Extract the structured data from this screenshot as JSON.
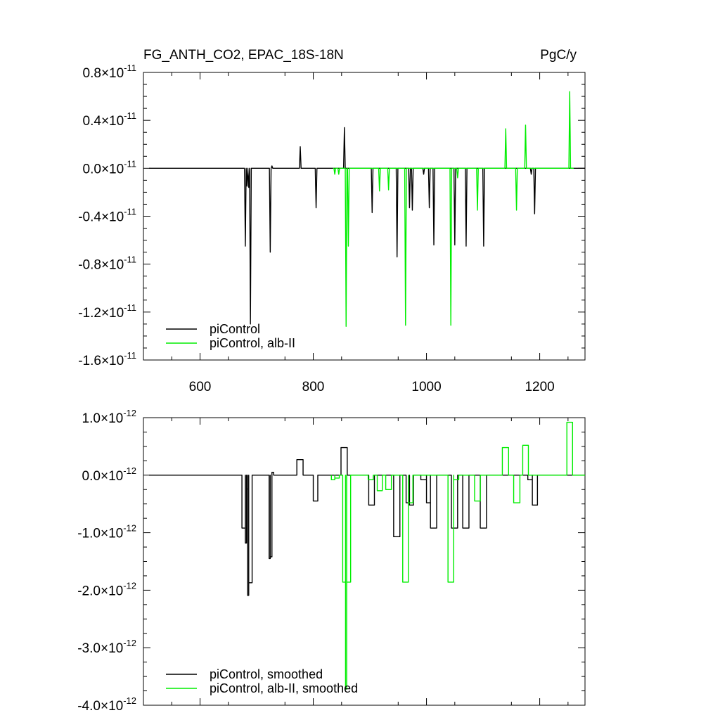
{
  "header": {
    "title": "FG_ANTH_CO2, EPAC_18S-18N",
    "units": "PgC/y"
  },
  "colors": {
    "picontrol": "#000000",
    "alb_ii": "#00ee00"
  },
  "chart_data": [
    {
      "type": "line",
      "panel": "top",
      "title": "FG_ANTH_CO2, EPAC_18S-18N",
      "units": "PgC/y",
      "xlim": [
        500,
        1280
      ],
      "ylim": [
        -1.6e-11,
        8e-12
      ],
      "x_ticks": [
        600,
        800,
        1000,
        1200
      ],
      "x_tick_labels": [
        "600",
        "800",
        "1000",
        "1200"
      ],
      "y_ticks": [
        {
          "mant": "0.8",
          "exp": "-11",
          "value": 8e-12
        },
        {
          "mant": "0.4",
          "exp": "-11",
          "value": 4e-12
        },
        {
          "mant": "0.0",
          "exp": "-11",
          "value": 0.0
        },
        {
          "mant": "-0.4",
          "exp": "-11",
          "value": -4e-12
        },
        {
          "mant": "-0.8",
          "exp": "-11",
          "value": -8e-12
        },
        {
          "mant": "-1.2",
          "exp": "-11",
          "value": -1.2e-11
        },
        {
          "mant": "-1.6",
          "exp": "-11",
          "value": -1.6e-11
        }
      ],
      "legend_position": "bottom-left",
      "series": [
        {
          "name": "piControl",
          "color": "#000000",
          "x_start": 510,
          "x_end": 1280,
          "baseline": 0,
          "spikes": [
            [
              680,
              -6.5e-12
            ],
            [
              683,
              -1.5e-12
            ],
            [
              686,
              -1.6e-12
            ],
            [
              689,
              -1.3e-11
            ],
            [
              724,
              -7e-12
            ],
            [
              727,
              2e-13
            ],
            [
              777,
              1.8e-12
            ],
            [
              805,
              -3.3e-12
            ],
            [
              855,
              3.4e-12
            ],
            [
              904,
              -3.7e-12
            ],
            [
              948,
              -7.4e-12
            ],
            [
              970,
              -3.3e-12
            ],
            [
              975,
              -3.5e-12
            ],
            [
              995,
              -5e-13
            ],
            [
              1005,
              -3.3e-12
            ],
            [
              1013,
              -6.4e-12
            ],
            [
              1050,
              -6.4e-12
            ],
            [
              1070,
              -6.5e-12
            ],
            [
              1101,
              -6.5e-12
            ],
            [
              1185,
              -5e-13
            ],
            [
              1191,
              -3.8e-12
            ]
          ]
        },
        {
          "name": "piControl, alb-II",
          "color": "#00ee00",
          "x_start": 835,
          "x_end": 1260,
          "baseline": 0,
          "spikes": [
            [
              838,
              -5e-13
            ],
            [
              845,
              -5e-13
            ],
            [
              858,
              -1.32e-11
            ],
            [
              862,
              -6.5e-12
            ],
            [
              917,
              -1.9e-12
            ],
            [
              933,
              -1.8e-12
            ],
            [
              963,
              -1.31e-11
            ],
            [
              1043,
              -1.31e-11
            ],
            [
              1055,
              -8e-13
            ],
            [
              1090,
              -3.5e-12
            ],
            [
              1140,
              3.3e-12
            ],
            [
              1159,
              -3.5e-12
            ],
            [
              1175,
              3.6e-12
            ],
            [
              1253,
              6.4e-12
            ]
          ]
        }
      ]
    },
    {
      "type": "line",
      "panel": "bottom",
      "xlim": [
        500,
        1280
      ],
      "ylim": [
        -4e-12,
        1e-12
      ],
      "x_ticks": [
        600,
        800,
        1000,
        1200
      ],
      "y_ticks": [
        {
          "mant": "1.0",
          "exp": "-12",
          "value": 1e-12
        },
        {
          "mant": "0.0",
          "exp": "-12",
          "value": 0.0
        },
        {
          "mant": "-1.0",
          "exp": "-12",
          "value": -1e-12
        },
        {
          "mant": "-2.0",
          "exp": "-12",
          "value": -2e-12
        },
        {
          "mant": "-3.0",
          "exp": "-12",
          "value": -3e-12
        },
        {
          "mant": "-4.0",
          "exp": "-12",
          "value": -4e-12
        }
      ],
      "legend_position": "bottom-left",
      "series": [
        {
          "name": "piControl, smoothed",
          "color": "#000000",
          "x_start": 510,
          "x_end": 1280,
          "baseline": 0,
          "blocks": [
            [
              674,
              680,
              -9.2e-13
            ],
            [
              680,
              682,
              -1.18e-12
            ],
            [
              682,
              684,
              -2.4e-13
            ],
            [
              684,
              686,
              -2.09e-12
            ],
            [
              686,
              692,
              -1.87e-12
            ],
            [
              722,
              724,
              -1.45e-12
            ],
            [
              724,
              727,
              -1.42e-12
            ],
            [
              727,
              730,
              5e-14
            ],
            [
              771,
              782,
              2.7e-13
            ],
            [
              800,
              808,
              -4.5e-13
            ],
            [
              849,
              860,
              4.8e-13
            ],
            [
              898,
              908,
              -5.2e-13
            ],
            [
              942,
              953,
              -1.07e-12
            ],
            [
              964,
              970,
              -4.8e-13
            ],
            [
              970,
              977,
              -5.2e-13
            ],
            [
              990,
              1000,
              -8e-14
            ],
            [
              1000,
              1007,
              -4.8e-13
            ],
            [
              1007,
              1018,
              -9.2e-13
            ],
            [
              1044,
              1055,
              -9.2e-13
            ],
            [
              1064,
              1075,
              -9.2e-13
            ],
            [
              1095,
              1106,
              -9.2e-13
            ],
            [
              1179,
              1187,
              -8e-14
            ],
            [
              1187,
              1196,
              -5.2e-13
            ]
          ]
        },
        {
          "name": "piControl, alb-II, smoothed",
          "color": "#00ee00",
          "x_start": 832,
          "x_end": 1280,
          "baseline": 0,
          "blocks": [
            [
              832,
              838,
              -8e-14
            ],
            [
              838,
              846,
              -5e-14
            ],
            [
              852,
              857,
              -1.86e-12
            ],
            [
              857,
              859,
              -3.72e-12
            ],
            [
              859,
              866,
              -1.86e-12
            ],
            [
              897,
              906,
              -8e-14
            ],
            [
              913,
              922,
              -2.7e-13
            ],
            [
              928,
              938,
              -2.5e-13
            ],
            [
              958,
              968,
              -1.86e-12
            ],
            [
              968,
              976,
              -4.8e-13
            ],
            [
              1038,
              1048,
              -1.86e-12
            ],
            [
              1048,
              1057,
              -8e-14
            ],
            [
              1085,
              1095,
              -4.5e-13
            ],
            [
              1134,
              1145,
              4.8e-13
            ],
            [
              1154,
              1165,
              -4.8e-13
            ],
            [
              1170,
              1180,
              5.2e-13
            ],
            [
              1248,
              1258,
              9.2e-13
            ]
          ]
        }
      ]
    }
  ]
}
